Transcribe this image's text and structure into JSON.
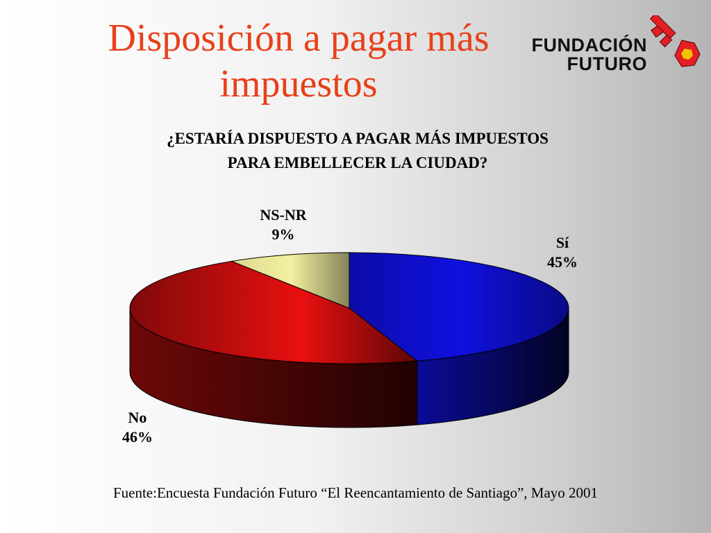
{
  "slide": {
    "title": "Disposición a pagar más impuestos",
    "source": "Fuente:Encuesta Fundación Futuro  “El Reencantamiento de Santiago”, Mayo 2001"
  },
  "logo": {
    "line1": "FUNDACIÓN",
    "line2": "FUTURO",
    "icon": "key-icon",
    "color": "#e51e25"
  },
  "chart_data": {
    "type": "pie",
    "title": "¿ESTARÍA DISPUESTO A PAGAR MÁS IMPUESTOS PARA EMBELLECER LA CIUDAD?",
    "three_d": true,
    "slices": [
      {
        "name": "Sí",
        "value": 45,
        "label": "45%",
        "color": "#1010e0"
      },
      {
        "name": "No",
        "value": 46,
        "label": "46%",
        "color": "#e81010"
      },
      {
        "name": "NS-NR",
        "value": 9,
        "label": "9%",
        "color": "#f4f0a0"
      }
    ]
  }
}
